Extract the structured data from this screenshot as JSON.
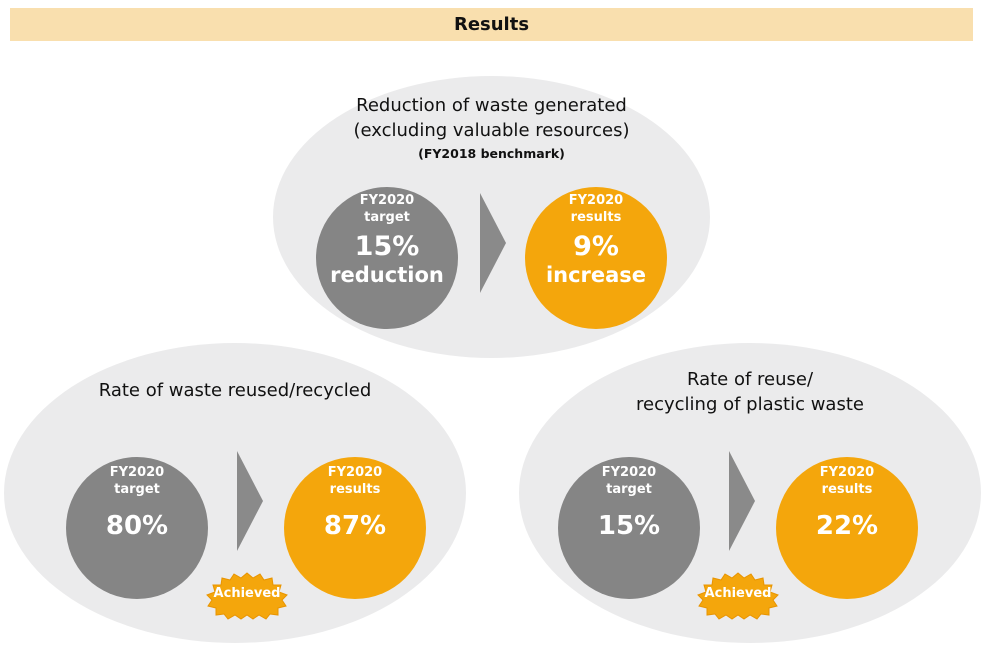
{
  "header": {
    "title": "Results"
  },
  "colors": {
    "header_bg": "#f9dfae",
    "ellipse_bg": "#ebebec",
    "target_circle": "#858585",
    "result_circle": "#f4a60c",
    "arrow": "#8a8a8a",
    "badge": "#f4a60c"
  },
  "sections": [
    {
      "title_line1": "Reduction of waste generated",
      "title_line2": "(excluding valuable resources)",
      "note": "(FY2018 benchmark)",
      "target": {
        "caption_line1": "FY2020",
        "caption_line2": "target",
        "value": "15%",
        "unit": "reduction"
      },
      "result": {
        "caption_line1": "FY2020",
        "caption_line2": "results",
        "value": "9%",
        "unit": "increase"
      }
    },
    {
      "title_line1": "Rate of waste reused/recycled",
      "target": {
        "caption_line1": "FY2020",
        "caption_line2": "target",
        "value": "80%"
      },
      "result": {
        "caption_line1": "FY2020",
        "caption_line2": "results",
        "value": "87%"
      },
      "badge": "Achieved"
    },
    {
      "title_line1": "Rate of reuse/",
      "title_line2": "recycling of plastic waste",
      "target": {
        "caption_line1": "FY2020",
        "caption_line2": "target",
        "value": "15%"
      },
      "result": {
        "caption_line1": "FY2020",
        "caption_line2": "results",
        "value": "22%"
      },
      "badge": "Achieved"
    }
  ]
}
